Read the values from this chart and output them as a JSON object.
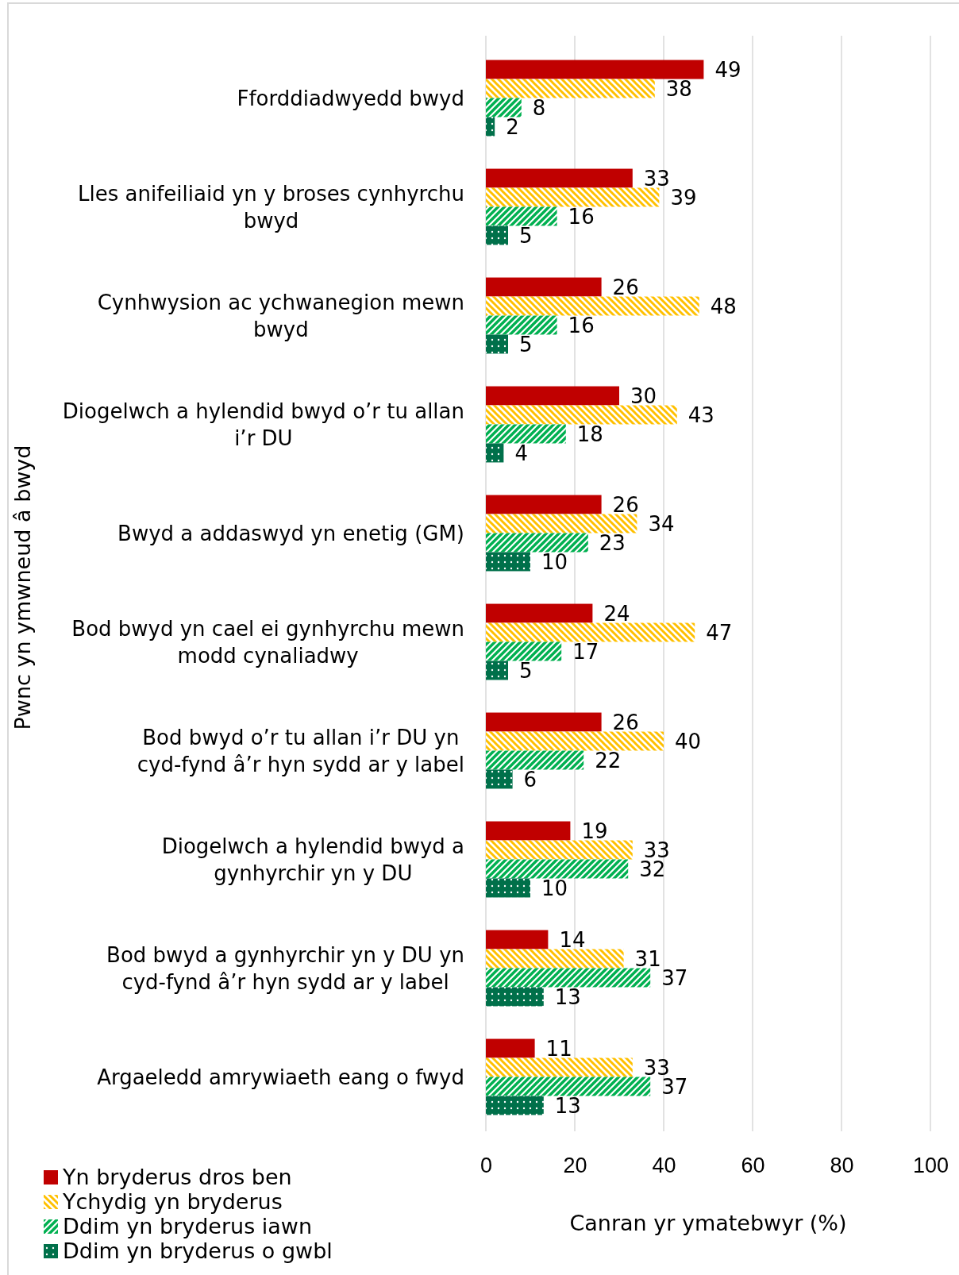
{
  "chart_data": {
    "type": "bar",
    "orientation": "horizontal",
    "ylabel": "Pwnc yn ymwneud â bwyd",
    "xlabel": "Canran yr ymatebwyr (%)",
    "categories": [
      "Fforddiadwyedd bwyd",
      "Lles anifeiliaid yn y broses cynhyrchu bwyd",
      "Cynhwysion ac ychwanegion mewn bwyd",
      "Diogelwch a hylendid bwyd o’r tu allan i’r DU",
      "Bwyd a addaswyd yn enetig (GM)",
      "Bod bwyd yn cael ei gynhyrchu mewn modd cynaliadwy",
      "Bod bwyd o’r tu allan i’r DU yn cyd-fynd â’r hyn sydd ar y label",
      "Diogelwch a hylendid bwyd a gynhyrchir yn y DU",
      "Bod bwyd a gynhyrchir yn y DU yn cyd-fynd â’r hyn sydd ar y label",
      "Argaeledd amrywiaeth eang o fwyd"
    ],
    "series": [
      {
        "name": "Yn bryderus dros ben",
        "color": "#c00000",
        "values": [
          49,
          33,
          26,
          30,
          26,
          24,
          26,
          19,
          14,
          11
        ]
      },
      {
        "name": "Ychydig yn bryderus",
        "color": "#ffc000",
        "values": [
          38,
          39,
          48,
          43,
          34,
          47,
          40,
          33,
          31,
          33
        ]
      },
      {
        "name": "Ddim yn bryderus iawn",
        "color": "#00b050",
        "values": [
          8,
          16,
          16,
          18,
          23,
          17,
          22,
          32,
          37,
          37
        ]
      },
      {
        "name": "Ddim yn bryderus o gwbl",
        "color": "#00704a",
        "values": [
          2,
          5,
          5,
          4,
          10,
          5,
          6,
          10,
          13,
          13
        ]
      }
    ],
    "xlim": [
      0,
      100
    ],
    "xticks": [
      0,
      20,
      40,
      60,
      80,
      100
    ],
    "grid": "x",
    "legend": "bottom left",
    "data_labels": true
  }
}
